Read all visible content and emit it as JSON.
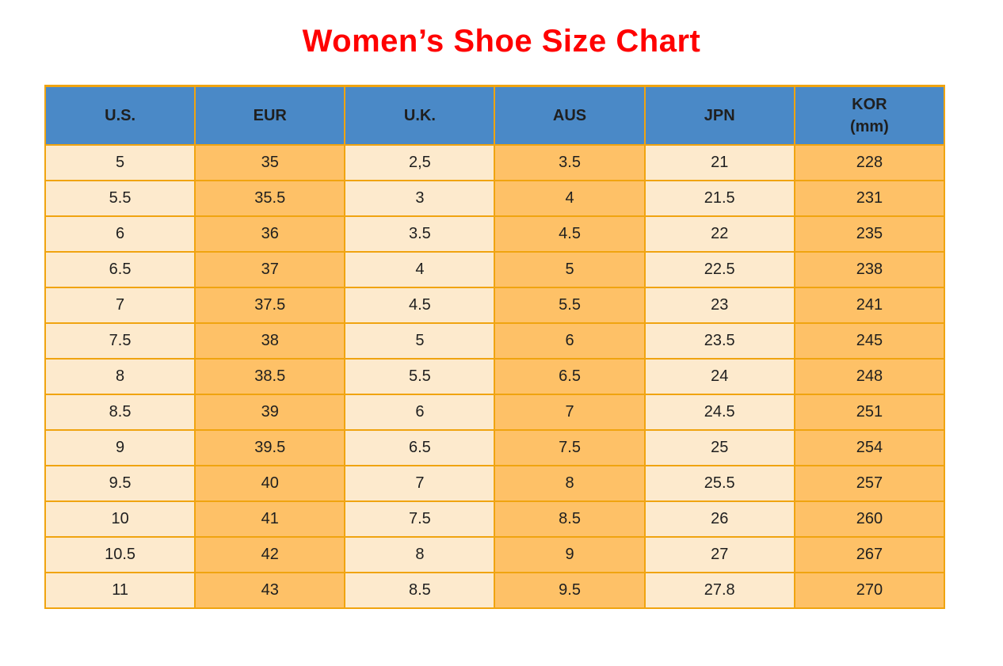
{
  "colors": {
    "title_red": "#ff0000",
    "header_blue": "#4a89c7",
    "col_cream": "#fdeacd",
    "col_orange": "#fec167",
    "border_orange": "#f0a410",
    "text_dark": "#1f1f1f"
  },
  "chart_data": {
    "type": "table",
    "title": "Women’s Shoe Size Chart",
    "columns": [
      "U.S.",
      "EUR",
      "U.K.",
      "AUS",
      "JPN",
      "KOR (mm)"
    ],
    "header_lines": [
      [
        "U.S."
      ],
      [
        "EUR"
      ],
      [
        "U.K."
      ],
      [
        "AUS"
      ],
      [
        "JPN"
      ],
      [
        "KOR",
        "(mm)"
      ]
    ],
    "rows": [
      [
        "5",
        "35",
        "2,5",
        "3.5",
        "21",
        "228"
      ],
      [
        "5.5",
        "35.5",
        "3",
        "4",
        "21.5",
        "231"
      ],
      [
        "6",
        "36",
        "3.5",
        "4.5",
        "22",
        "235"
      ],
      [
        "6.5",
        "37",
        "4",
        "5",
        "22.5",
        "238"
      ],
      [
        "7",
        "37.5",
        "4.5",
        "5.5",
        "23",
        "241"
      ],
      [
        "7.5",
        "38",
        "5",
        "6",
        "23.5",
        "245"
      ],
      [
        "8",
        "38.5",
        "5.5",
        "6.5",
        "24",
        "248"
      ],
      [
        "8.5",
        "39",
        "6",
        "7",
        "24.5",
        "251"
      ],
      [
        "9",
        "39.5",
        "6.5",
        "7.5",
        "25",
        "254"
      ],
      [
        "9.5",
        "40",
        "7",
        "8",
        "25.5",
        "257"
      ],
      [
        "10",
        "41",
        "7.5",
        "8.5",
        "26",
        "260"
      ],
      [
        "10.5",
        "42",
        "8",
        "9",
        "27",
        "267"
      ],
      [
        "11",
        "43",
        "8.5",
        "9.5",
        "27.8",
        "270"
      ]
    ],
    "layout": {
      "header_bg": "blue",
      "body_column_pattern": [
        "cream",
        "orange",
        "cream",
        "orange",
        "cream",
        "orange"
      ],
      "grid": "orange solid borders"
    }
  }
}
